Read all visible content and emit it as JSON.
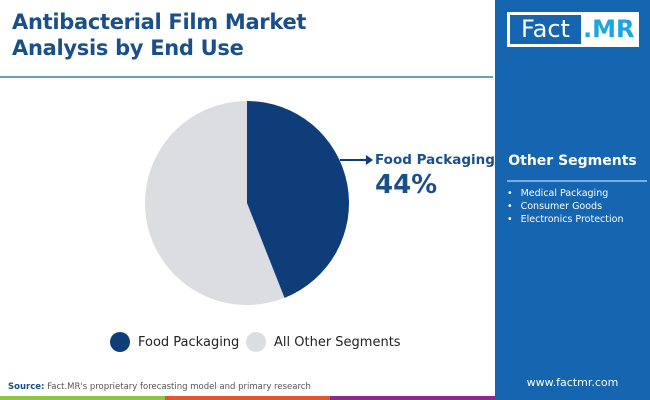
{
  "title_lines": [
    "Antibacterial Film Market",
    "Analysis by End Use"
  ],
  "logo": {
    "left": "Fact",
    "right": ".MR"
  },
  "side": {
    "heading": "Other Segments",
    "items": [
      "Medical Packaging",
      "Consumer Goods",
      "Electronics Protection"
    ],
    "url": "www.factmr.com"
  },
  "source": {
    "label": "Source:",
    "text": " Fact.MR's proprietary forecasting model and primary research"
  },
  "colors": {
    "primary": "#0f3d7a",
    "other": "#dcdde0",
    "accent": "#1565b0",
    "bars": [
      "#8dc63f",
      "#e2582c",
      "#8a2a8c"
    ]
  },
  "chart_data": {
    "type": "pie",
    "categories": [
      "Food Packaging",
      "All Other Segments"
    ],
    "values": [
      44,
      56
    ],
    "colors": [
      "#0f3d7a",
      "#dcdde0"
    ],
    "callout": {
      "label": "Food Packaging",
      "value": "44%"
    },
    "legend": "bottom"
  }
}
